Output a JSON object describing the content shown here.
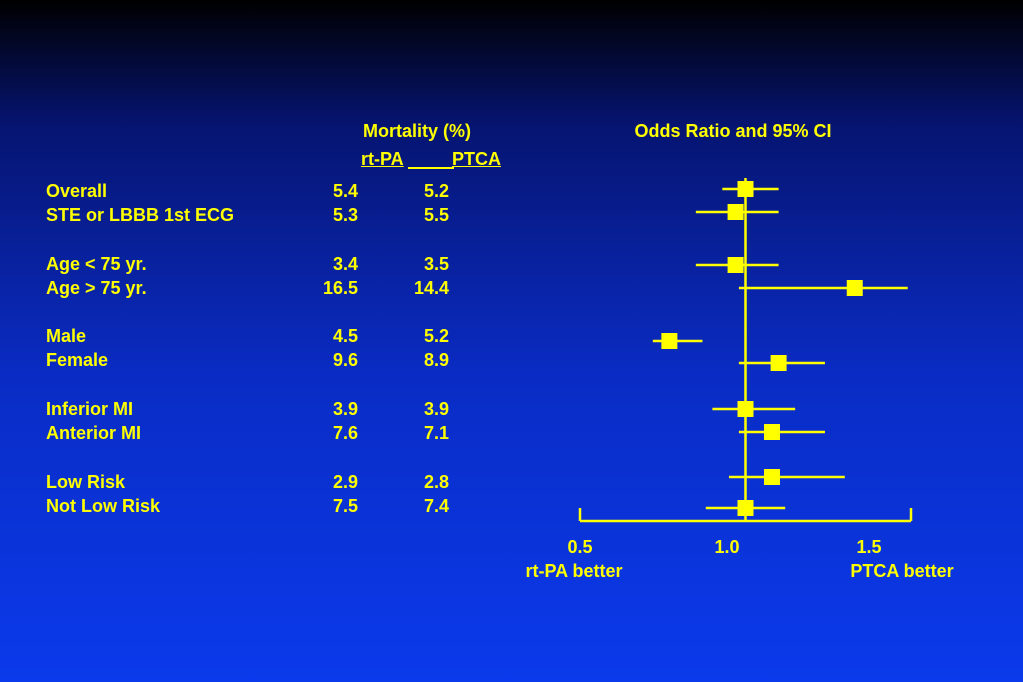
{
  "table": {
    "header_title": "Mortality (%)",
    "col1": "rt-PA",
    "col2": "PTCA",
    "rows": [
      {
        "label": "Overall",
        "rtpa": "5.4",
        "ptca": "5.2"
      },
      {
        "label": "STE or LBBB 1st ECG",
        "rtpa": "5.3",
        "ptca": "5.5"
      },
      {
        "label": "Age < 75 yr.",
        "rtpa": "3.4",
        "ptca": "3.5"
      },
      {
        "label": "Age > 75 yr.",
        "rtpa": "16.5",
        "ptca": "14.4"
      },
      {
        "label": "Male",
        "rtpa": "4.5",
        "ptca": "5.2"
      },
      {
        "label": "Female",
        "rtpa": "9.6",
        "ptca": "8.9"
      },
      {
        "label": "Inferior MI",
        "rtpa": "3.9",
        "ptca": "3.9"
      },
      {
        "label": "Anterior MI",
        "rtpa": "7.6",
        "ptca": "7.1"
      },
      {
        "label": "Low Risk",
        "rtpa": "2.9",
        "ptca": "2.8"
      },
      {
        "label": "Not Low Risk",
        "rtpa": "7.5",
        "ptca": "7.4"
      }
    ]
  },
  "chart_data": {
    "type": "forest",
    "title": "Odds Ratio and 95% CI",
    "xlim": [
      0.5,
      1.5
    ],
    "ticks": [
      "0.5",
      "1.0",
      "1.5"
    ],
    "reference_line": 1.0,
    "left_label": "rt-PA better",
    "right_label": "PTCA better",
    "points": [
      {
        "label": "Overall",
        "or": 1.0,
        "lo": 0.93,
        "hi": 1.1
      },
      {
        "label": "STE or LBBB 1st ECG",
        "or": 0.97,
        "lo": 0.85,
        "hi": 1.1
      },
      {
        "label": "Age < 75 yr.",
        "or": 0.97,
        "lo": 0.85,
        "hi": 1.1
      },
      {
        "label": "Age > 75 yr.",
        "or": 1.33,
        "lo": 0.98,
        "hi": 1.49
      },
      {
        "label": "Male",
        "or": 0.77,
        "lo": 0.72,
        "hi": 0.87
      },
      {
        "label": "Female",
        "or": 1.1,
        "lo": 0.98,
        "hi": 1.24
      },
      {
        "label": "Inferior MI",
        "or": 1.0,
        "lo": 0.9,
        "hi": 1.15
      },
      {
        "label": "Anterior MI",
        "or": 1.08,
        "lo": 0.98,
        "hi": 1.24
      },
      {
        "label": "Low Risk",
        "or": 1.08,
        "lo": 0.95,
        "hi": 1.3
      },
      {
        "label": "Not Low Risk",
        "or": 1.0,
        "lo": 0.88,
        "hi": 1.12
      }
    ],
    "color": "#ffff00"
  }
}
